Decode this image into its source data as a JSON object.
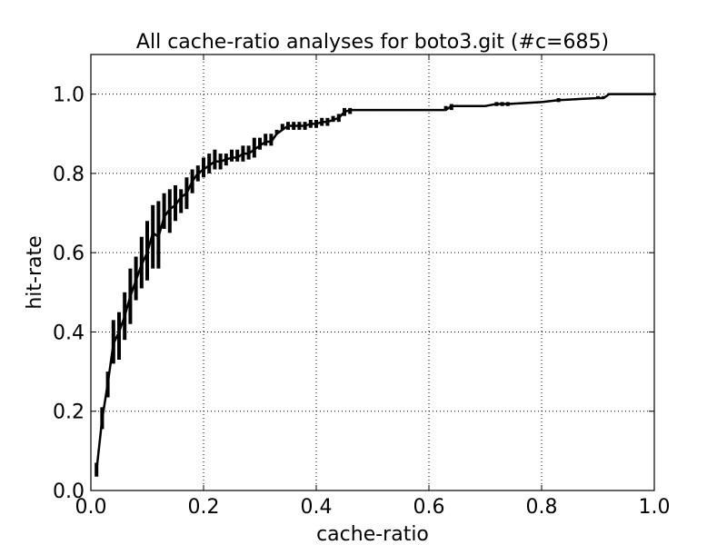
{
  "chart_data": {
    "type": "line",
    "title": "All cache-ratio analyses for boto3.git (#c=685)",
    "xlabel": "cache-ratio",
    "ylabel": "hit-rate",
    "xlim": [
      0.0,
      1.0
    ],
    "ylim": [
      0.0,
      1.1
    ],
    "xticks": [
      0.0,
      0.2,
      0.4,
      0.6,
      0.8,
      1.0
    ],
    "xtick_labels": [
      "0.0",
      "0.2",
      "0.4",
      "0.6",
      "0.8",
      "1.0"
    ],
    "yticks": [
      0.0,
      0.2,
      0.4,
      0.6,
      0.8,
      1.0
    ],
    "ytick_labels": [
      "0.0",
      "0.2",
      "0.4",
      "0.6",
      "0.8",
      "1.0"
    ],
    "grid": true,
    "legend": "none",
    "line_color": "#000000",
    "series": [
      {
        "x": [
          0.01,
          0.02,
          0.03,
          0.04,
          0.05,
          0.06,
          0.07,
          0.08,
          0.09,
          0.1,
          0.11,
          0.12,
          0.13,
          0.14,
          0.15,
          0.16,
          0.17,
          0.18,
          0.19,
          0.2,
          0.21,
          0.22,
          0.23,
          0.24,
          0.25,
          0.26,
          0.27,
          0.28,
          0.29,
          0.3,
          0.31,
          0.32,
          0.33,
          0.34,
          0.35,
          0.36,
          0.37,
          0.38,
          0.39,
          0.4,
          0.41,
          0.42,
          0.43,
          0.44,
          0.45,
          0.46,
          0.5,
          0.55,
          0.6,
          0.63,
          0.64,
          0.7,
          0.72,
          0.73,
          0.74,
          0.8,
          0.83,
          0.9,
          0.91,
          0.92,
          1.0
        ],
        "y": [
          0.05,
          0.18,
          0.27,
          0.37,
          0.4,
          0.44,
          0.49,
          0.53,
          0.57,
          0.6,
          0.65,
          0.64,
          0.69,
          0.71,
          0.72,
          0.74,
          0.75,
          0.78,
          0.8,
          0.81,
          0.82,
          0.83,
          0.83,
          0.835,
          0.84,
          0.84,
          0.85,
          0.85,
          0.86,
          0.87,
          0.88,
          0.88,
          0.9,
          0.91,
          0.92,
          0.92,
          0.92,
          0.92,
          0.925,
          0.925,
          0.93,
          0.93,
          0.935,
          0.94,
          0.955,
          0.96,
          0.96,
          0.96,
          0.96,
          0.96,
          0.97,
          0.97,
          0.975,
          0.975,
          0.975,
          0.98,
          0.985,
          0.99,
          0.99,
          1.0,
          1.0
        ],
        "y_err_low": [
          0.035,
          0.155,
          0.235,
          0.32,
          0.33,
          0.38,
          0.42,
          0.48,
          0.51,
          0.53,
          0.56,
          0.56,
          0.66,
          0.65,
          0.68,
          0.7,
          0.71,
          0.75,
          0.78,
          0.79,
          0.8,
          0.81,
          0.81,
          0.82,
          0.83,
          0.83,
          0.83,
          0.835,
          0.84,
          0.86,
          0.87,
          0.87,
          0.9,
          0.91,
          0.91,
          0.91,
          0.91,
          0.91,
          0.915,
          0.915,
          0.92,
          0.92,
          0.93,
          0.93,
          0.945,
          0.95,
          0.96,
          0.96,
          0.96,
          0.96,
          0.96,
          0.97,
          0.97,
          0.97,
          0.97,
          0.98,
          0.98,
          0.99,
          0.99,
          1.0,
          1.0
        ],
        "y_err_high": [
          0.07,
          0.21,
          0.3,
          0.43,
          0.45,
          0.5,
          0.56,
          0.59,
          0.64,
          0.68,
          0.72,
          0.73,
          0.75,
          0.76,
          0.77,
          0.76,
          0.79,
          0.81,
          0.82,
          0.84,
          0.85,
          0.86,
          0.85,
          0.85,
          0.86,
          0.86,
          0.87,
          0.87,
          0.89,
          0.89,
          0.9,
          0.9,
          0.91,
          0.925,
          0.93,
          0.93,
          0.93,
          0.93,
          0.935,
          0.935,
          0.94,
          0.94,
          0.945,
          0.95,
          0.965,
          0.965,
          0.96,
          0.96,
          0.96,
          0.97,
          0.975,
          0.97,
          0.98,
          0.98,
          0.98,
          0.98,
          0.99,
          0.995,
          0.995,
          1.0,
          1.0
        ]
      }
    ]
  }
}
